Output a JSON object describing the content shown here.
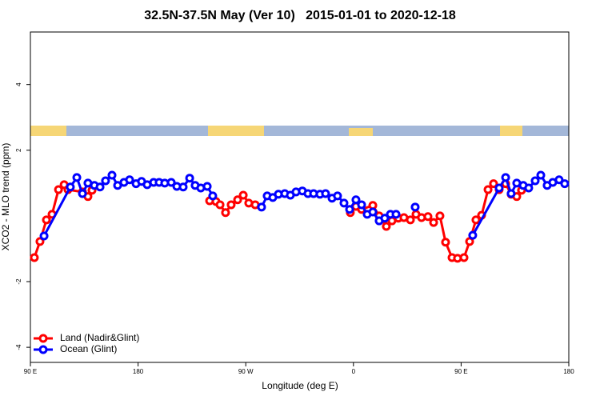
{
  "chart_data": {
    "type": "line",
    "title": "32.5N-37.5N May (Ver 10)   2015-01-01 to 2020-12-18",
    "xlabel": "Longitude (deg E)",
    "ylabel": "XCO2 - MLO trend (ppm)",
    "xlim": [
      90,
      540
    ],
    "ylim": [
      -4.46,
      5.6
    ],
    "xticks": [
      {
        "value": 90,
        "label": "90 E"
      },
      180,
      {
        "value": 270,
        "label": "90 W"
      },
      {
        "value": 360,
        "label": "0"
      },
      {
        "value": 450,
        "label": "90 E"
      },
      {
        "value": 540,
        "label": "180"
      }
    ],
    "yticks": [
      -4,
      -2,
      2,
      4
    ],
    "legend": "bottom-left",
    "series": [
      {
        "name": "Land (Nadir&Glint)",
        "color": "#ff0000",
        "x": [
          93.3,
          98.0,
          103.4,
          108.1,
          113.5,
          118.2,
          121.4,
          133.5,
          138.1,
          141.5,
          null,
          239.8,
          245.1,
          248.5,
          253.1,
          257.8,
          263.2,
          267.9,
          272.5,
          277.9,
          null,
          357.4,
          362.1,
          366.8,
          376.2,
          381.5,
          387.5,
          392.2,
          397.5,
          402.2,
          407.6,
          412.3,
          416.9,
          422.3,
          427.0,
          432.3,
          437.0,
          442.4,
          447.0,
          452.4,
          457.1,
          462.4,
          467.1,
          472.5,
          477.1,
          481.8,
          487.2,
          491.8,
          496.5,
          500.5
        ],
        "values": [
          -1.27,
          -0.78,
          -0.12,
          0.05,
          0.8,
          0.95,
          0.8,
          0.73,
          0.59,
          0.78,
          null,
          0.46,
          0.44,
          0.34,
          0.1,
          0.34,
          0.49,
          0.63,
          0.39,
          0.34,
          null,
          0.1,
          0.29,
          0.2,
          0.32,
          0.0,
          -0.32,
          -0.15,
          -0.07,
          -0.05,
          -0.12,
          0.05,
          -0.05,
          -0.02,
          -0.2,
          0.0,
          -0.8,
          -1.27,
          -1.29,
          -1.27,
          -0.78,
          -0.12,
          0.02,
          0.8,
          0.98,
          0.8,
          0.98,
          0.66,
          0.59,
          0.78
        ]
      },
      {
        "name": "Ocean (Glint)",
        "color": "#0000ff",
        "x": [
          101.4,
          123.4,
          128.8,
          133.5,
          138.1,
          143.5,
          148.2,
          152.8,
          158.2,
          162.9,
          168.2,
          172.9,
          178.3,
          182.9,
          187.6,
          193.0,
          197.6,
          202.3,
          207.7,
          212.4,
          217.7,
          223.1,
          227.7,
          232.4,
          237.8,
          242.4,
          null,
          283.2,
          287.9,
          292.6,
          297.3,
          302.6,
          307.3,
          312.0,
          317.3,
          322.0,
          326.7,
          332.0,
          336.7,
          342.1,
          346.7,
          352.1,
          356.8,
          362.1,
          366.8,
          371.5,
          376.2,
          381.5,
          386.2,
          390.9,
          395.6,
          null,
          411.6,
          null,
          459.7,
          481.8,
          487.2,
          491.8,
          496.5,
          501.9,
          506.5,
          511.9,
          516.6,
          521.9,
          526.6,
          531.9,
          536.6
        ],
        "values": [
          -0.61,
          0.88,
          1.17,
          0.68,
          1.0,
          0.93,
          0.88,
          1.07,
          1.24,
          0.93,
          1.02,
          1.1,
          0.98,
          1.05,
          0.95,
          1.02,
          1.02,
          1.0,
          1.02,
          0.9,
          0.88,
          1.15,
          0.93,
          0.85,
          0.9,
          0.61,
          null,
          0.27,
          0.61,
          0.56,
          0.66,
          0.68,
          0.63,
          0.73,
          0.76,
          0.68,
          0.68,
          0.66,
          0.68,
          0.54,
          0.61,
          0.39,
          0.2,
          0.49,
          0.34,
          0.05,
          0.12,
          -0.15,
          -0.07,
          0.05,
          0.05,
          null,
          0.27,
          null,
          -0.59,
          0.85,
          1.17,
          0.68,
          1.0,
          0.93,
          0.85,
          1.07,
          1.24,
          0.93,
          1.02,
          1.1,
          0.98
        ]
      }
    ]
  }
}
